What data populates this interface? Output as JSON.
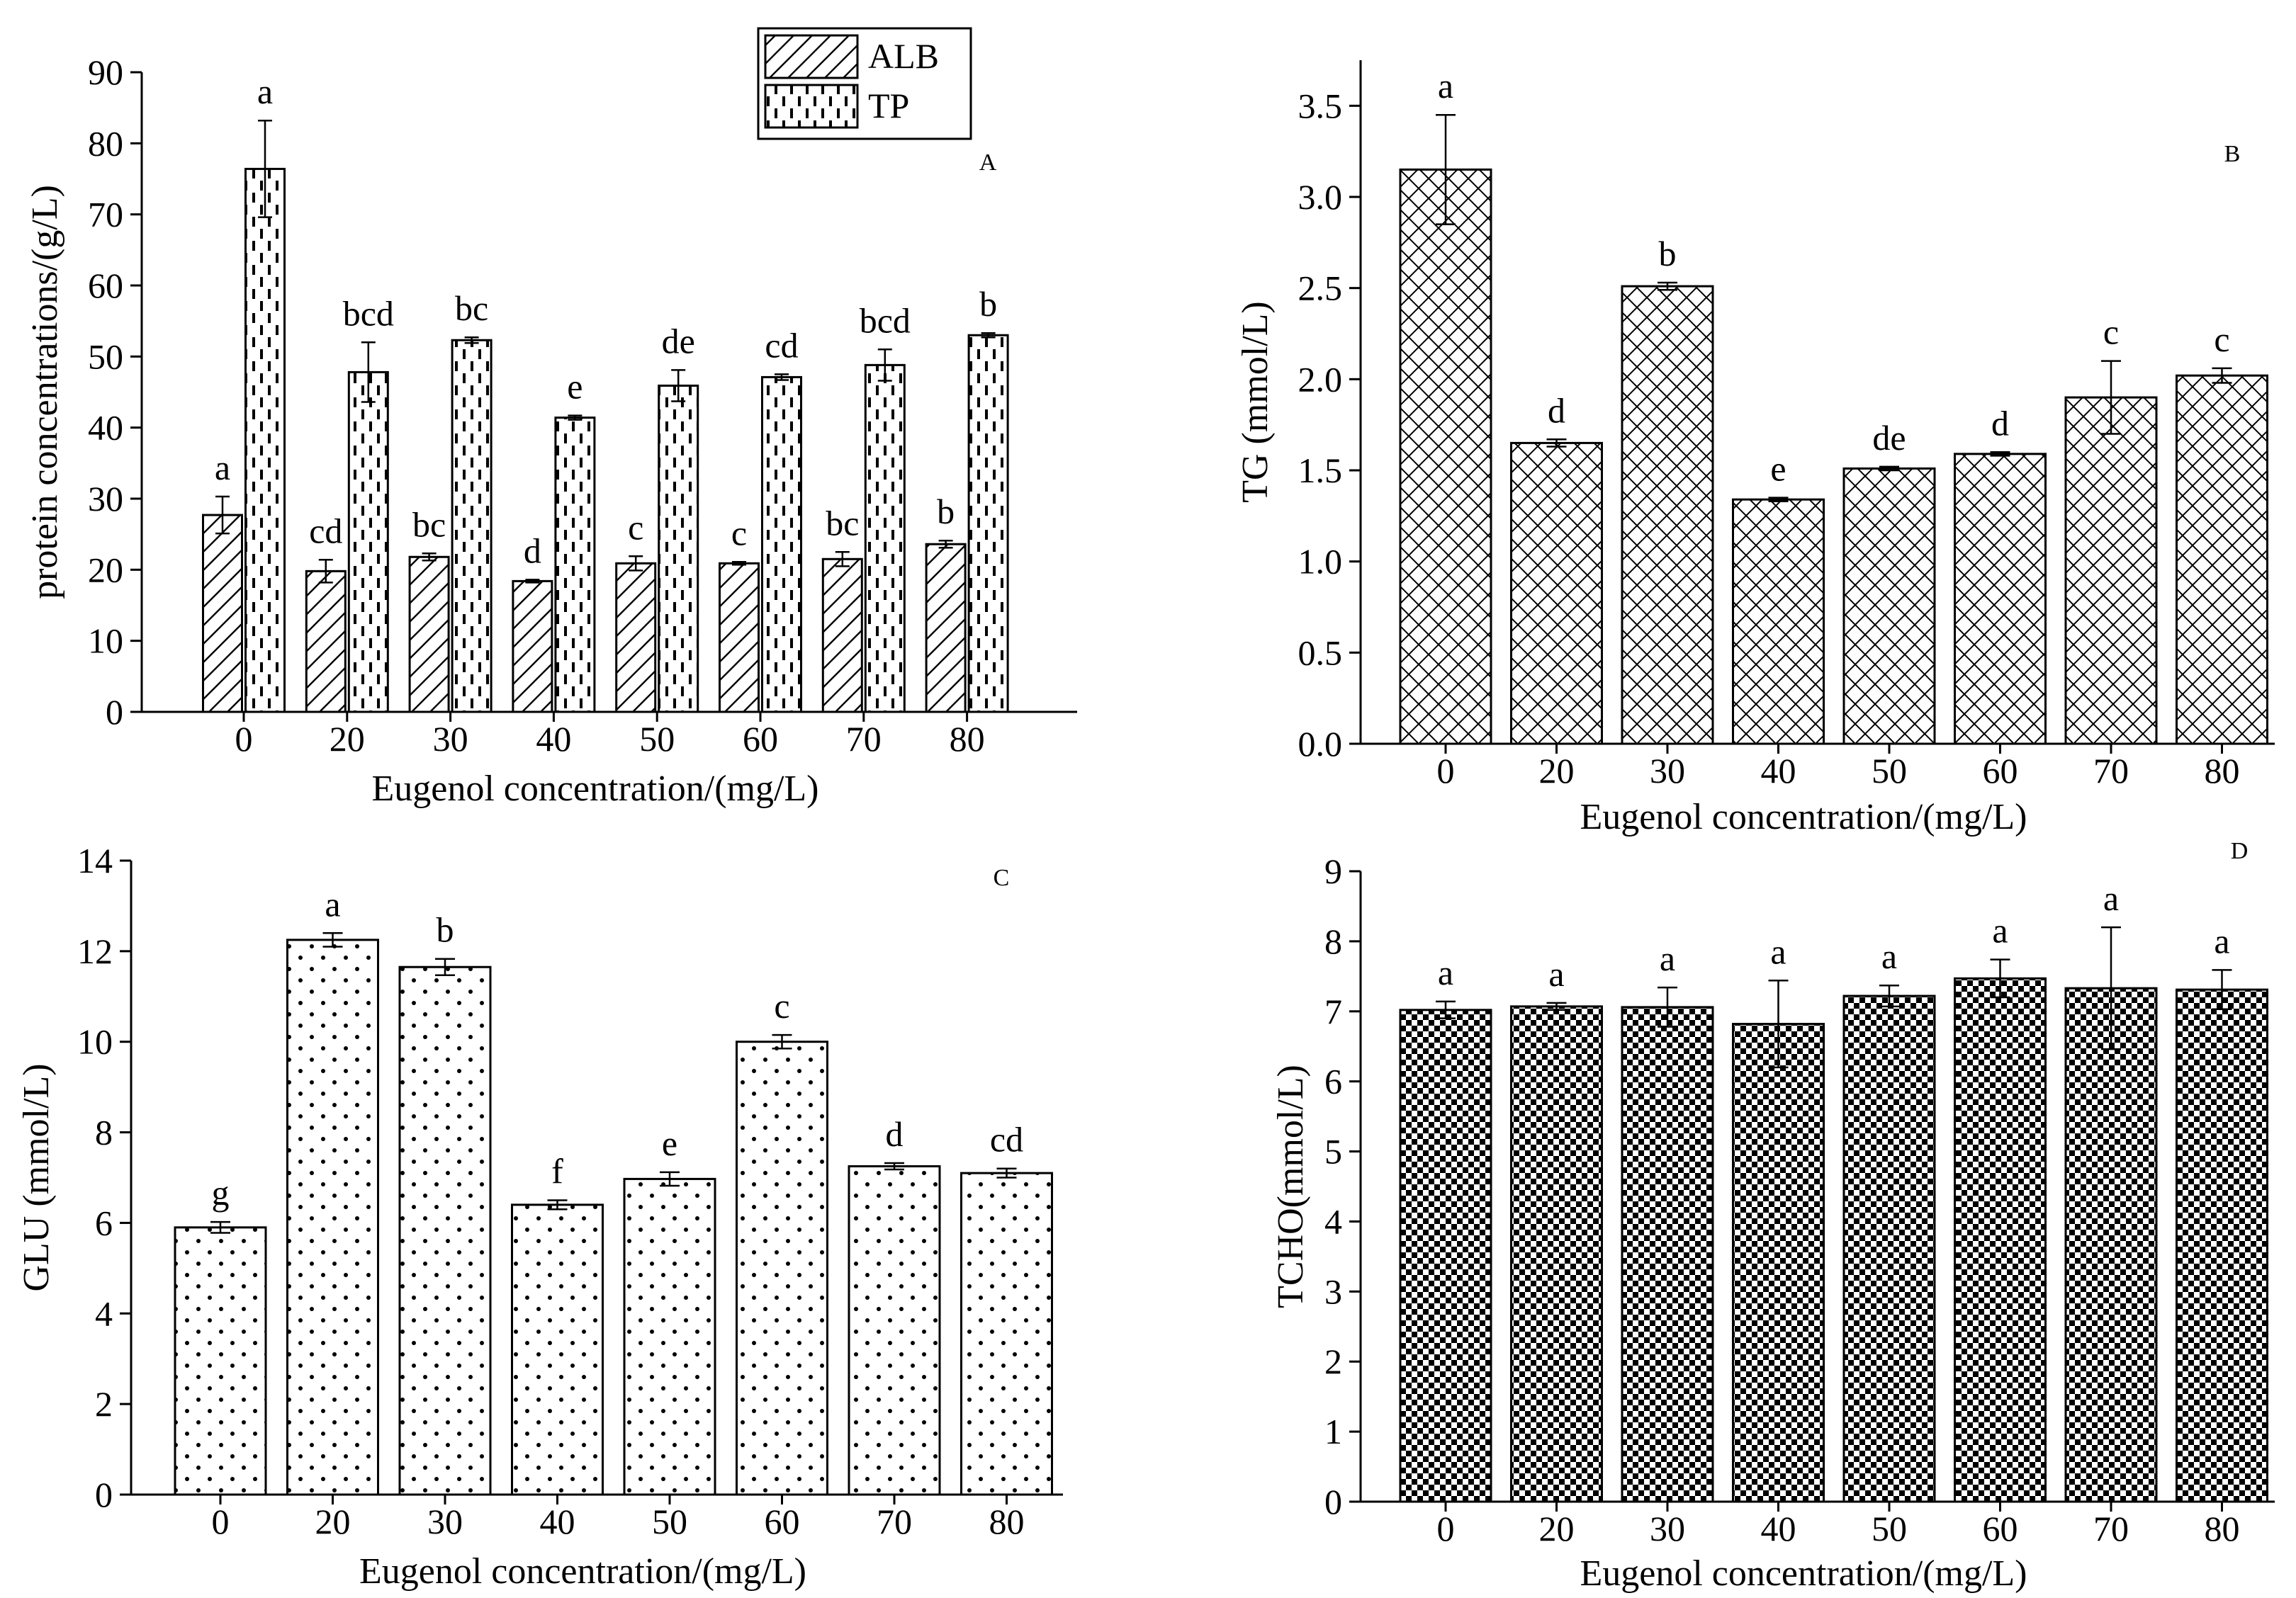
{
  "chart_data": [
    {
      "id": "A",
      "type": "bar",
      "panel_label": "A",
      "xlabel": "Eugenol  concentration/(mg/L)",
      "ylabel": "protein concentrations/(g/L)",
      "ylim": [
        0,
        90
      ],
      "yticks": [
        0,
        10,
        20,
        30,
        40,
        50,
        60,
        70,
        80,
        90
      ],
      "categories": [
        "0",
        "20",
        "30",
        "40",
        "50",
        "60",
        "70",
        "80"
      ],
      "legend": [
        "ALB",
        "TP"
      ],
      "legend_position": "top-center",
      "series": [
        {
          "name": "ALB",
          "pattern": "diagonal-hatch",
          "values": [
            27.7,
            19.8,
            21.8,
            18.4,
            20.9,
            20.9,
            21.5,
            23.6
          ],
          "errors": [
            2.6,
            1.6,
            0.5,
            0.2,
            1.0,
            0.2,
            1.0,
            0.5
          ],
          "labels": [
            "a",
            "cd",
            "bc",
            "d",
            "c",
            "c",
            "bc",
            "b"
          ]
        },
        {
          "name": "TP",
          "pattern": "dashed-dots",
          "values": [
            76.4,
            47.8,
            52.3,
            41.4,
            45.9,
            47.1,
            48.8,
            53.0
          ],
          "errors": [
            6.8,
            4.2,
            0.4,
            0.3,
            2.2,
            0.4,
            2.2,
            0.3
          ],
          "labels": [
            "a",
            "bcd",
            "bc",
            "e",
            "de",
            "cd",
            "bcd",
            "b"
          ]
        }
      ]
    },
    {
      "id": "B",
      "type": "bar",
      "panel_label": "B",
      "xlabel": "Eugenol  concentration/(mg/L)",
      "ylabel": "TG (mmol/L)",
      "ylim": [
        0,
        3.75
      ],
      "yticks": [
        "0.0",
        "0.5",
        "1.0",
        "1.5",
        "2.0",
        "2.5",
        "3.0",
        "3.5"
      ],
      "categories": [
        "0",
        "20",
        "30",
        "40",
        "50",
        "60",
        "70",
        "80"
      ],
      "series": [
        {
          "name": "TG",
          "pattern": "crosshatch",
          "values": [
            3.15,
            1.65,
            2.51,
            1.34,
            1.51,
            1.59,
            1.9,
            2.02
          ],
          "errors": [
            0.3,
            0.02,
            0.02,
            0.01,
            0.01,
            0.01,
            0.2,
            0.04
          ],
          "labels": [
            "a",
            "d",
            "b",
            "e",
            "de",
            "d",
            "c",
            "c"
          ]
        }
      ]
    },
    {
      "id": "C",
      "type": "bar",
      "panel_label": "C",
      "xlabel": "Eugenol  concentration/(mg/L)",
      "ylabel": "GLU (mmol/L)",
      "ylim": [
        0,
        14
      ],
      "yticks": [
        "0",
        "2",
        "4",
        "6",
        "8",
        "10",
        "12",
        "14"
      ],
      "categories": [
        "0",
        "20",
        "30",
        "40",
        "50",
        "60",
        "70",
        "80"
      ],
      "series": [
        {
          "name": "GLU",
          "pattern": "dots",
          "values": [
            5.9,
            12.25,
            11.65,
            6.4,
            6.97,
            10.0,
            7.25,
            7.1
          ],
          "errors": [
            0.12,
            0.15,
            0.18,
            0.1,
            0.15,
            0.15,
            0.07,
            0.1
          ],
          "labels": [
            "g",
            "a",
            "b",
            "f",
            "e",
            "c",
            "d",
            "cd"
          ]
        }
      ]
    },
    {
      "id": "D",
      "type": "bar",
      "panel_label": "D",
      "xlabel": "Eugenol  concentration/(mg/L)",
      "ylabel": "TCHO(mmol/L)",
      "ylim": [
        0,
        9
      ],
      "yticks": [
        "0",
        "1",
        "2",
        "3",
        "4",
        "5",
        "6",
        "7",
        "8",
        "9"
      ],
      "categories": [
        "0",
        "20",
        "30",
        "40",
        "50",
        "60",
        "70",
        "80"
      ],
      "series": [
        {
          "name": "TCHO",
          "pattern": "checker",
          "values": [
            7.02,
            7.07,
            7.06,
            6.82,
            7.22,
            7.47,
            7.33,
            7.31
          ],
          "errors": [
            0.12,
            0.05,
            0.28,
            0.62,
            0.15,
            0.27,
            0.87,
            0.28
          ],
          "labels": [
            "a",
            "a",
            "a",
            "a",
            "a",
            "a",
            "a",
            "a"
          ]
        }
      ]
    }
  ]
}
